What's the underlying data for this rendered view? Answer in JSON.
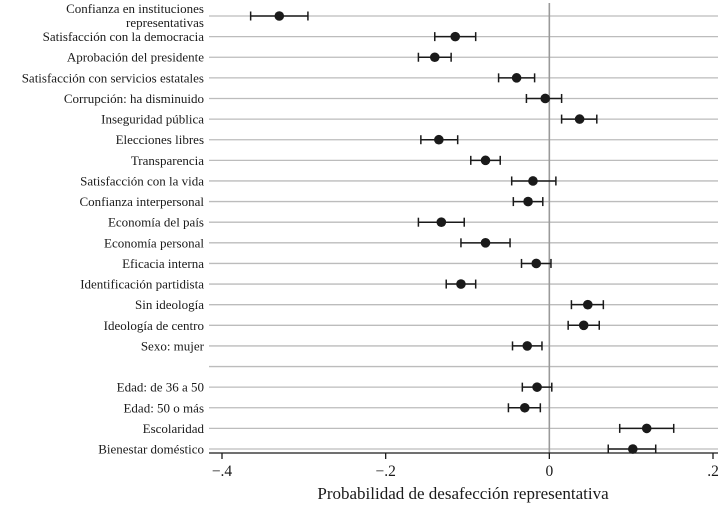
{
  "chart_data": {
    "type": "scatter",
    "subtype": "coefficient-dot-whisker",
    "title": "",
    "xlabel": "Probabilidad de desafección representativa",
    "ylabel": "",
    "xlim": [
      -0.45,
      0.21
    ],
    "x_ticks": [
      -0.4,
      -0.2,
      0,
      0.2
    ],
    "x_tick_labels": [
      "−.4",
      "−.2",
      "0",
      ".2"
    ],
    "reference_line_x": 0,
    "grid": "horizontal",
    "legend": "none",
    "colors": {
      "marker": "#1a1a1a",
      "grid": "#bcbcbc",
      "zero_line": "#9a9a9a",
      "axis": "#1a1a1a",
      "text": "#1a1a1a",
      "background": "#ffffff"
    },
    "items": [
      {
        "label": [
          "Confianza en instituciones",
          "representativas"
        ],
        "estimate": -0.33,
        "ci": [
          -0.365,
          -0.295
        ]
      },
      {
        "label": "Satisfacción con la democracia",
        "estimate": -0.115,
        "ci": [
          -0.14,
          -0.09
        ]
      },
      {
        "label": "Aprobación del presidente",
        "estimate": -0.14,
        "ci": [
          -0.16,
          -0.12
        ]
      },
      {
        "label": "Satisfacción con servicios estatales",
        "estimate": -0.04,
        "ci": [
          -0.062,
          -0.018
        ]
      },
      {
        "label": "Corrupción: ha disminuido",
        "estimate": -0.005,
        "ci": [
          -0.028,
          0.015
        ]
      },
      {
        "label": "Inseguridad pública",
        "estimate": 0.037,
        "ci": [
          0.015,
          0.058
        ]
      },
      {
        "label": "Elecciones libres",
        "estimate": -0.135,
        "ci": [
          -0.157,
          -0.112
        ]
      },
      {
        "label": "Transparencia",
        "estimate": -0.078,
        "ci": [
          -0.096,
          -0.06
        ]
      },
      {
        "label": "Satisfacción con la vida",
        "estimate": -0.02,
        "ci": [
          -0.046,
          0.008
        ]
      },
      {
        "label": "Confianza interpersonal",
        "estimate": -0.026,
        "ci": [
          -0.044,
          -0.008
        ]
      },
      {
        "label": "Economía del país",
        "estimate": -0.132,
        "ci": [
          -0.16,
          -0.104
        ]
      },
      {
        "label": "Economía personal",
        "estimate": -0.078,
        "ci": [
          -0.108,
          -0.048
        ]
      },
      {
        "label": "Eficacia interna",
        "estimate": -0.016,
        "ci": [
          -0.034,
          0.002
        ]
      },
      {
        "label": "Identificación partidista",
        "estimate": -0.108,
        "ci": [
          -0.126,
          -0.09
        ]
      },
      {
        "label": "Sin ideología",
        "estimate": 0.047,
        "ci": [
          0.027,
          0.066
        ]
      },
      {
        "label": "Ideología de centro",
        "estimate": 0.042,
        "ci": [
          0.023,
          0.061
        ]
      },
      {
        "label": "Sexo: mujer",
        "estimate": -0.027,
        "ci": [
          -0.045,
          -0.009
        ]
      },
      {
        "label": "",
        "estimate": null,
        "ci": null
      },
      {
        "label": "Edad: de 36 a 50",
        "estimate": -0.015,
        "ci": [
          -0.033,
          0.003
        ]
      },
      {
        "label": "Edad: 50 o más",
        "estimate": -0.03,
        "ci": [
          -0.05,
          -0.011
        ]
      },
      {
        "label": "Escolaridad",
        "estimate": 0.119,
        "ci": [
          0.086,
          0.152
        ]
      },
      {
        "label": "Bienestar doméstico",
        "estimate": 0.102,
        "ci": [
          0.072,
          0.13
        ]
      }
    ]
  }
}
